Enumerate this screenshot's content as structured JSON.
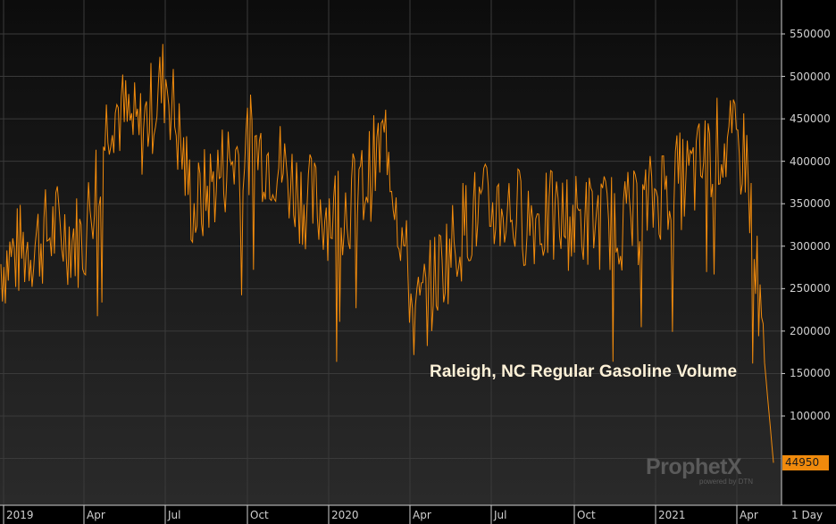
{
  "chart_data": {
    "type": "line",
    "title": "Raleigh, NC Regular Gasoline Volume",
    "series_color": "#f08a0c",
    "ylim": [
      0,
      580000
    ],
    "y_ticks": [
      "550000",
      "500000",
      "450000",
      "400000",
      "350000",
      "300000",
      "250000",
      "200000",
      "150000",
      "100000"
    ],
    "x_ticks": [
      "2019",
      "Apr",
      "Jul",
      "Oct",
      "2020",
      "Apr",
      "Jul",
      "Oct",
      "2021",
      "Apr"
    ],
    "last_value": "44950",
    "interval": "1 Day",
    "x": [
      "2019-01",
      "2019-02",
      "2019-03",
      "2019-04",
      "2019-05",
      "2019-06",
      "2019-07",
      "2019-08",
      "2019-09",
      "2019-10",
      "2019-11",
      "2019-12",
      "2020-01",
      "2020-02",
      "2020-03",
      "2020-04",
      "2020-05",
      "2020-06",
      "2020-07",
      "2020-08",
      "2020-09",
      "2020-10",
      "2020-11",
      "2020-12",
      "2021-01",
      "2021-02",
      "2021-03",
      "2021-04",
      "2021-05"
    ],
    "values": [
      280000,
      300000,
      320000,
      305000,
      470000,
      430000,
      500000,
      340000,
      390000,
      420000,
      400000,
      355000,
      340000,
      360000,
      430000,
      210000,
      280000,
      335000,
      345000,
      335000,
      330000,
      330000,
      330000,
      330000,
      370000,
      380000,
      420000,
      410000,
      44950
    ]
  },
  "branding": {
    "logo": "ProphetX",
    "tagline": "powered by DTN"
  }
}
